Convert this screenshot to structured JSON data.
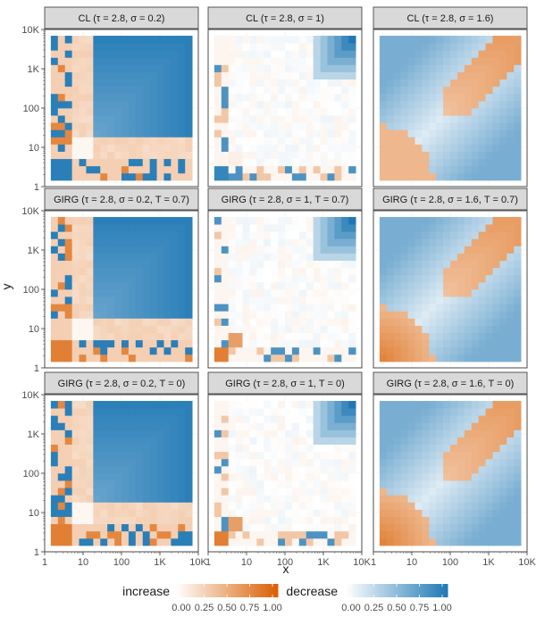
{
  "chart_data": {
    "type": "heatmap",
    "title": "",
    "xlabel": "x",
    "ylabel": "y",
    "x_scale": "log10",
    "y_scale": "log10",
    "xlim": [
      1,
      10000
    ],
    "ylim": [
      1,
      10000
    ],
    "x_ticks": [
      "1",
      "10",
      "100",
      "1K",
      "10K"
    ],
    "y_ticks": [
      "1",
      "10",
      "100",
      "1K",
      "10K"
    ],
    "grid": true,
    "facets": [
      {
        "row": 0,
        "col": 0,
        "label": "CL (τ = 2.8, σ = 0.2)",
        "model": "CL",
        "tau": 2.8,
        "sigma": 0.2,
        "T": null
      },
      {
        "row": 0,
        "col": 1,
        "label": "CL (τ = 2.8, σ = 1)",
        "model": "CL",
        "tau": 2.8,
        "sigma": 1,
        "T": null
      },
      {
        "row": 0,
        "col": 2,
        "label": "CL (τ = 2.8, σ = 1.6)",
        "model": "CL",
        "tau": 2.8,
        "sigma": 1.6,
        "T": null
      },
      {
        "row": 1,
        "col": 0,
        "label": "GIRG (τ = 2.8, σ = 0.2, T = 0.7)",
        "model": "GIRG",
        "tau": 2.8,
        "sigma": 0.2,
        "T": 0.7
      },
      {
        "row": 1,
        "col": 1,
        "label": "GIRG (τ = 2.8, σ = 1, T = 0.7)",
        "model": "GIRG",
        "tau": 2.8,
        "sigma": 1,
        "T": 0.7
      },
      {
        "row": 1,
        "col": 2,
        "label": "GIRG (τ = 2.8, σ = 1.6, T = 0.7)",
        "model": "GIRG",
        "tau": 2.8,
        "sigma": 1.6,
        "T": 0.7
      },
      {
        "row": 2,
        "col": 0,
        "label": "GIRG (τ = 2.8, σ = 0.2, T = 0)",
        "model": "GIRG",
        "tau": 2.8,
        "sigma": 0.2,
        "T": 0
      },
      {
        "row": 2,
        "col": 1,
        "label": "GIRG (τ = 2.8, σ = 1, T = 0)",
        "model": "GIRG",
        "tau": 2.8,
        "sigma": 1,
        "T": 0
      },
      {
        "row": 2,
        "col": 2,
        "label": "GIRG (τ = 2.8, σ = 1.6, T = 0)",
        "model": "GIRG",
        "tau": 2.8,
        "sigma": 1.6,
        "T": 0
      }
    ],
    "legend": {
      "placement": "bottom",
      "increase": {
        "title": "increase",
        "ticks": [
          "0.00",
          "0.25",
          "0.50",
          "0.75",
          "1.00"
        ],
        "color_low": "#ffffff",
        "color_high": "#d95f02"
      },
      "decrease": {
        "title": "decrease",
        "ticks": [
          "0.00",
          "0.25",
          "0.50",
          "0.75",
          "1.00"
        ],
        "color_low": "#ffffff",
        "color_high": "#1f78b4"
      }
    },
    "colors": {
      "increase": "#d95f02",
      "decrease": "#1f78b4",
      "strip_fill": "#d9d9d9",
      "strip_border": "#333333",
      "grid": "#ebebeb"
    }
  }
}
